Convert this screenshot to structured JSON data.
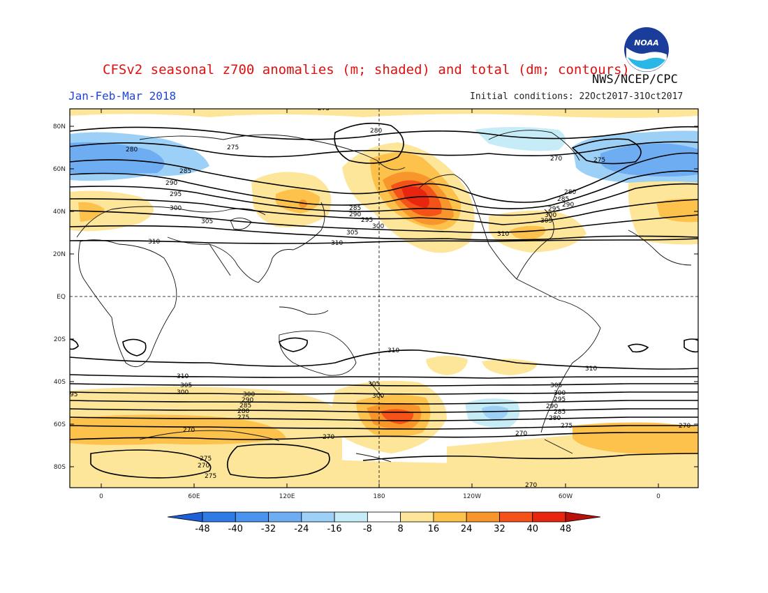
{
  "title": "CFSv2 seasonal z700 anomalies (m; shaded) and total (dm; contours)",
  "agency": "NWS/NCEP/CPC",
  "logo_text": "NOAA",
  "season": "Jan-Feb-Mar 2018",
  "initial_conditions": "Initial conditions: 22Oct2017-31Oct2017",
  "lat_labels": [
    "80N",
    "60N",
    "40N",
    "20N",
    "EQ",
    "20S",
    "40S",
    "60S",
    "80S"
  ],
  "lon_labels": [
    "0",
    "60E",
    "120E",
    "180",
    "120W",
    "60W",
    "0"
  ],
  "colorbar": {
    "ticks": [
      "-48",
      "-40",
      "-32",
      "-24",
      "-16",
      "-8",
      "8",
      "16",
      "24",
      "32",
      "40",
      "48"
    ],
    "colors": [
      "#1f5fd6",
      "#2f7be6",
      "#4a93ee",
      "#6fadf3",
      "#9dd0f7",
      "#c5ecf7",
      "#ffffff",
      "#fde69a",
      "#fcc24b",
      "#f8952b",
      "#f5521a",
      "#e8260f",
      "#b8100a"
    ]
  },
  "contour_labels": [
    "275",
    "280",
    "285",
    "290",
    "295",
    "300",
    "305",
    "310",
    "310",
    "310",
    "305",
    "300",
    "295",
    "290",
    "285",
    "280",
    "275",
    "270",
    "270",
    "275",
    "280",
    "270",
    "275",
    "280",
    "285",
    "290",
    "295",
    "300",
    "305",
    "310",
    "95",
    "300",
    "305",
    "310",
    "305",
    "300",
    "295",
    "290",
    "285",
    "280",
    "275",
    "270",
    "270",
    "270",
    "275",
    "270",
    "275",
    "270",
    "310",
    "270"
  ]
}
